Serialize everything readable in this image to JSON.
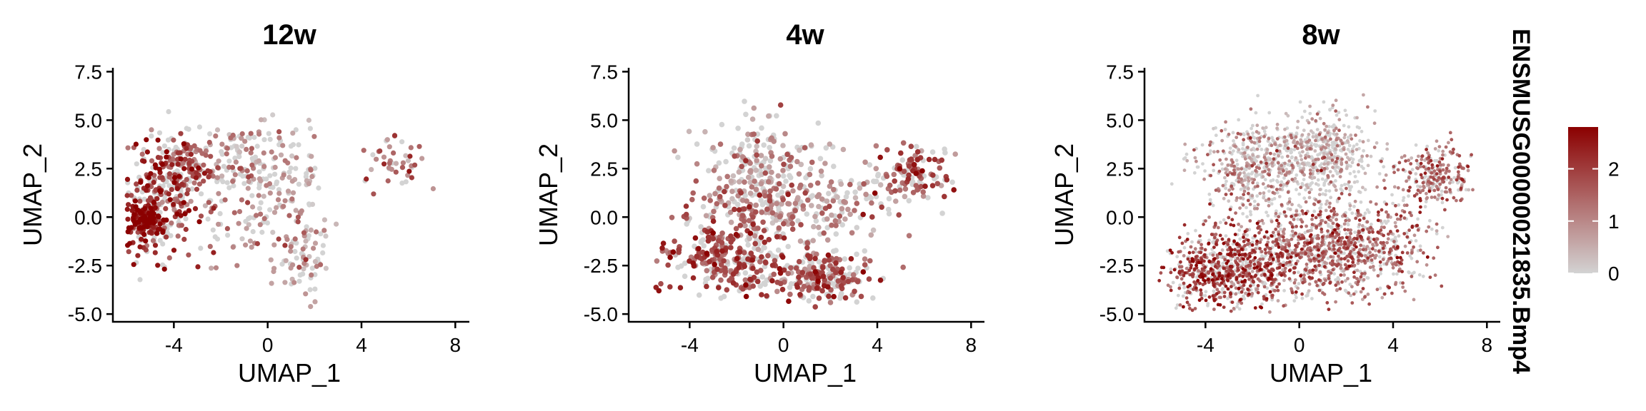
{
  "chart_data": [
    {
      "type": "scatter",
      "title": "12w",
      "xlabel": "UMAP_1",
      "ylabel": "UMAP_2",
      "xlim": [
        -6.6,
        8.6
      ],
      "ylim": [
        -5.4,
        7.7
      ],
      "xticks": [
        "-4",
        "0",
        "4",
        "8"
      ],
      "yticks": [
        "-5.0",
        "-2.5",
        "0.0",
        "2.5",
        "5.0",
        "7.5"
      ],
      "clusters": [
        {
          "x": -4.6,
          "y": 0.8,
          "sx": 0.9,
          "sy": 1.6,
          "n": 320,
          "mean_expr": 2.1
        },
        {
          "x": -5.3,
          "y": -0.2,
          "sx": 0.35,
          "sy": 0.5,
          "n": 120,
          "mean_expr": 2.6
        },
        {
          "x": -3.5,
          "y": 2.6,
          "sx": 0.7,
          "sy": 0.9,
          "n": 120,
          "mean_expr": 1.6
        },
        {
          "x": -1.0,
          "y": 2.8,
          "sx": 1.0,
          "sy": 1.2,
          "n": 110,
          "mean_expr": 0.7
        },
        {
          "x": 0.8,
          "y": 1.8,
          "sx": 1.0,
          "sy": 1.6,
          "n": 110,
          "mean_expr": 0.7
        },
        {
          "x": 1.5,
          "y": -2.3,
          "sx": 0.5,
          "sy": 1.0,
          "n": 60,
          "mean_expr": 0.9
        },
        {
          "x": 5.3,
          "y": 2.8,
          "sx": 0.7,
          "sy": 0.6,
          "n": 45,
          "mean_expr": 1.2
        },
        {
          "x": -1.5,
          "y": -0.5,
          "sx": 1.5,
          "sy": 1.2,
          "n": 60,
          "mean_expr": 0.8
        }
      ]
    },
    {
      "type": "scatter",
      "title": "4w",
      "xlabel": "UMAP_1",
      "ylabel": "UMAP_2",
      "xlim": [
        -6.6,
        8.6
      ],
      "ylim": [
        -5.4,
        7.7
      ],
      "xticks": [
        "-4",
        "0",
        "4",
        "8"
      ],
      "yticks": [
        "-5.0",
        "-2.5",
        "0.0",
        "2.5",
        "5.0",
        "7.5"
      ],
      "clusters": [
        {
          "x": -2.5,
          "y": -2.2,
          "sx": 1.3,
          "sy": 0.9,
          "n": 260,
          "mean_expr": 1.8
        },
        {
          "x": 1.5,
          "y": -3.0,
          "sx": 1.3,
          "sy": 0.7,
          "n": 220,
          "mean_expr": 1.6
        },
        {
          "x": -0.8,
          "y": 2.8,
          "sx": 1.2,
          "sy": 1.3,
          "n": 180,
          "mean_expr": 0.8
        },
        {
          "x": -1.0,
          "y": 0.2,
          "sx": 1.5,
          "sy": 1.2,
          "n": 200,
          "mean_expr": 1.2
        },
        {
          "x": 5.5,
          "y": 2.2,
          "sx": 0.9,
          "sy": 0.8,
          "n": 120,
          "mean_expr": 1.6
        },
        {
          "x": 2.3,
          "y": 0.5,
          "sx": 1.2,
          "sy": 1.3,
          "n": 100,
          "mean_expr": 0.9
        }
      ]
    },
    {
      "type": "scatter",
      "title": "8w",
      "xlabel": "UMAP_1",
      "ylabel": "UMAP_2",
      "xlim": [
        -6.6,
        8.6
      ],
      "ylim": [
        -5.4,
        7.7
      ],
      "xticks": [
        "-4",
        "0",
        "4",
        "8"
      ],
      "yticks": [
        "-5.0",
        "-2.5",
        "0.0",
        "2.5",
        "5.0",
        "7.5"
      ],
      "clusters": [
        {
          "x": -3.2,
          "y": -2.8,
          "sx": 1.2,
          "sy": 1.0,
          "n": 700,
          "mean_expr": 1.9
        },
        {
          "x": 0.0,
          "y": -1.8,
          "sx": 1.5,
          "sy": 1.3,
          "n": 650,
          "mean_expr": 1.4
        },
        {
          "x": 2.8,
          "y": -1.5,
          "sx": 1.3,
          "sy": 1.2,
          "n": 500,
          "mean_expr": 1.4
        },
        {
          "x": -0.5,
          "y": 2.8,
          "sx": 1.5,
          "sy": 1.2,
          "n": 500,
          "mean_expr": 0.5
        },
        {
          "x": 1.5,
          "y": 3.5,
          "sx": 0.9,
          "sy": 1.0,
          "n": 250,
          "mean_expr": 0.3
        },
        {
          "x": 5.8,
          "y": 2.1,
          "sx": 0.8,
          "sy": 0.8,
          "n": 250,
          "mean_expr": 1.4
        },
        {
          "x": -2.5,
          "y": 2.5,
          "sx": 1.0,
          "sy": 1.0,
          "n": 200,
          "mean_expr": 0.9
        }
      ]
    }
  ],
  "legend": {
    "title": "ENSMUSG00000021835.Bmp4",
    "ticks": [
      "0",
      "1",
      "2"
    ],
    "range": [
      0,
      2.8
    ],
    "colors": {
      "low": "#d3d3d3",
      "high": "#8b0000"
    }
  }
}
